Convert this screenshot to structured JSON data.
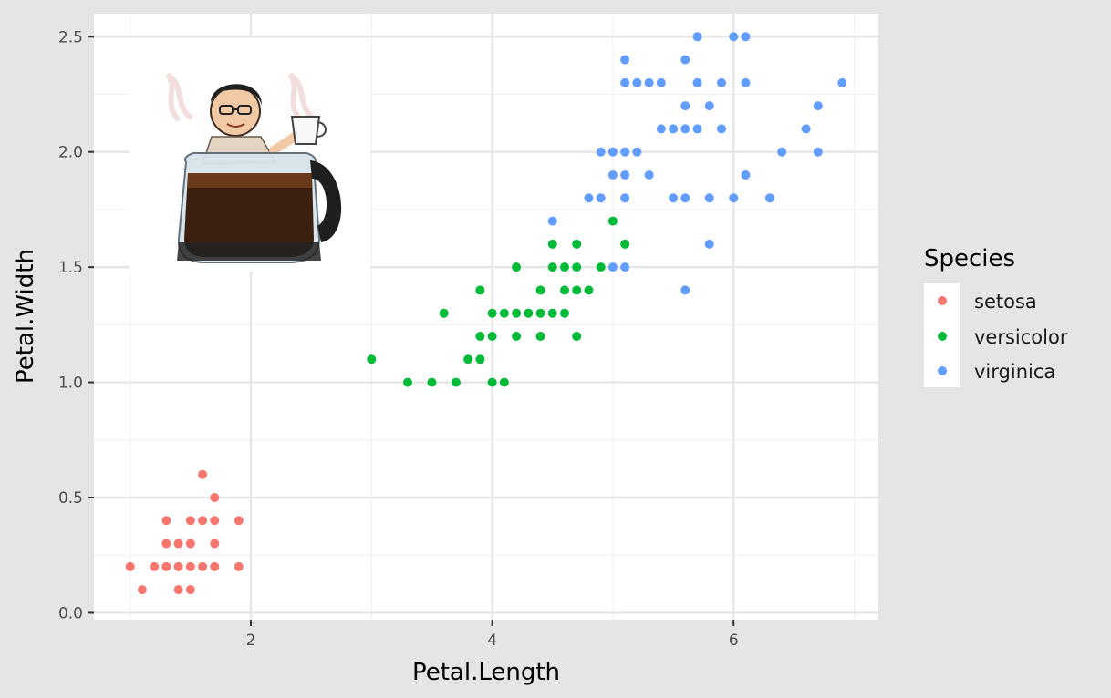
{
  "chart_data": {
    "type": "scatter",
    "xlabel": "Petal.Length",
    "ylabel": "Petal.Width",
    "xlim": [
      0.7,
      7.2
    ],
    "ylim": [
      -0.03,
      2.6
    ],
    "x_ticks": [
      2,
      4,
      6
    ],
    "y_ticks": [
      0.0,
      0.5,
      1.0,
      1.5,
      2.0,
      2.5
    ],
    "x_tick_labels": [
      "2",
      "4",
      "6"
    ],
    "y_tick_labels": [
      "0.0",
      "0.5",
      "1.0",
      "1.5",
      "2.0",
      "2.5"
    ],
    "grid": true,
    "legend": {
      "title": "Species",
      "placement": "right"
    },
    "series": [
      {
        "name": "setosa",
        "color": "#f8766d",
        "points": [
          [
            1.0,
            0.2
          ],
          [
            1.1,
            0.1
          ],
          [
            1.2,
            0.2
          ],
          [
            1.3,
            0.2
          ],
          [
            1.3,
            0.3
          ],
          [
            1.3,
            0.4
          ],
          [
            1.4,
            0.1
          ],
          [
            1.4,
            0.2
          ],
          [
            1.4,
            0.3
          ],
          [
            1.5,
            0.1
          ],
          [
            1.5,
            0.2
          ],
          [
            1.5,
            0.3
          ],
          [
            1.5,
            0.4
          ],
          [
            1.6,
            0.2
          ],
          [
            1.6,
            0.4
          ],
          [
            1.6,
            0.6
          ],
          [
            1.7,
            0.2
          ],
          [
            1.7,
            0.3
          ],
          [
            1.7,
            0.4
          ],
          [
            1.7,
            0.5
          ],
          [
            1.9,
            0.2
          ],
          [
            1.9,
            0.4
          ]
        ]
      },
      {
        "name": "versicolor",
        "color": "#00ba38",
        "points": [
          [
            3.0,
            1.1
          ],
          [
            3.3,
            1.0
          ],
          [
            3.5,
            1.0
          ],
          [
            3.6,
            1.3
          ],
          [
            3.7,
            1.0
          ],
          [
            3.8,
            1.1
          ],
          [
            3.9,
            1.1
          ],
          [
            3.9,
            1.2
          ],
          [
            3.9,
            1.4
          ],
          [
            4.0,
            1.0
          ],
          [
            4.0,
            1.2
          ],
          [
            4.0,
            1.3
          ],
          [
            4.1,
            1.0
          ],
          [
            4.1,
            1.3
          ],
          [
            4.2,
            1.2
          ],
          [
            4.2,
            1.3
          ],
          [
            4.2,
            1.5
          ],
          [
            4.3,
            1.3
          ],
          [
            4.4,
            1.2
          ],
          [
            4.4,
            1.3
          ],
          [
            4.4,
            1.4
          ],
          [
            4.5,
            1.3
          ],
          [
            4.5,
            1.5
          ],
          [
            4.5,
            1.6
          ],
          [
            4.6,
            1.3
          ],
          [
            4.6,
            1.4
          ],
          [
            4.6,
            1.5
          ],
          [
            4.7,
            1.2
          ],
          [
            4.7,
            1.4
          ],
          [
            4.7,
            1.5
          ],
          [
            4.7,
            1.6
          ],
          [
            4.8,
            1.4
          ],
          [
            4.9,
            1.5
          ],
          [
            5.0,
            1.7
          ],
          [
            5.1,
            1.6
          ]
        ]
      },
      {
        "name": "virginica",
        "color": "#619cff",
        "points": [
          [
            4.5,
            1.7
          ],
          [
            4.8,
            1.8
          ],
          [
            4.9,
            1.8
          ],
          [
            4.9,
            2.0
          ],
          [
            5.0,
            1.5
          ],
          [
            5.0,
            1.9
          ],
          [
            5.0,
            2.0
          ],
          [
            5.1,
            1.5
          ],
          [
            5.1,
            1.8
          ],
          [
            5.1,
            1.9
          ],
          [
            5.1,
            2.0
          ],
          [
            5.1,
            2.3
          ],
          [
            5.1,
            2.4
          ],
          [
            5.2,
            2.0
          ],
          [
            5.2,
            2.3
          ],
          [
            5.3,
            1.9
          ],
          [
            5.3,
            2.3
          ],
          [
            5.4,
            2.1
          ],
          [
            5.4,
            2.3
          ],
          [
            5.5,
            1.8
          ],
          [
            5.5,
            2.1
          ],
          [
            5.6,
            1.4
          ],
          [
            5.6,
            1.8
          ],
          [
            5.6,
            2.1
          ],
          [
            5.6,
            2.2
          ],
          [
            5.6,
            2.4
          ],
          [
            5.7,
            2.1
          ],
          [
            5.7,
            2.3
          ],
          [
            5.7,
            2.5
          ],
          [
            5.8,
            1.6
          ],
          [
            5.8,
            1.8
          ],
          [
            5.8,
            2.2
          ],
          [
            5.9,
            2.1
          ],
          [
            5.9,
            2.3
          ],
          [
            6.0,
            1.8
          ],
          [
            6.0,
            2.5
          ],
          [
            6.1,
            1.9
          ],
          [
            6.1,
            2.3
          ],
          [
            6.1,
            2.5
          ],
          [
            6.3,
            1.8
          ],
          [
            6.4,
            2.0
          ],
          [
            6.6,
            2.1
          ],
          [
            6.7,
            2.0
          ],
          [
            6.7,
            2.2
          ],
          [
            6.9,
            2.3
          ]
        ]
      }
    ]
  }
}
